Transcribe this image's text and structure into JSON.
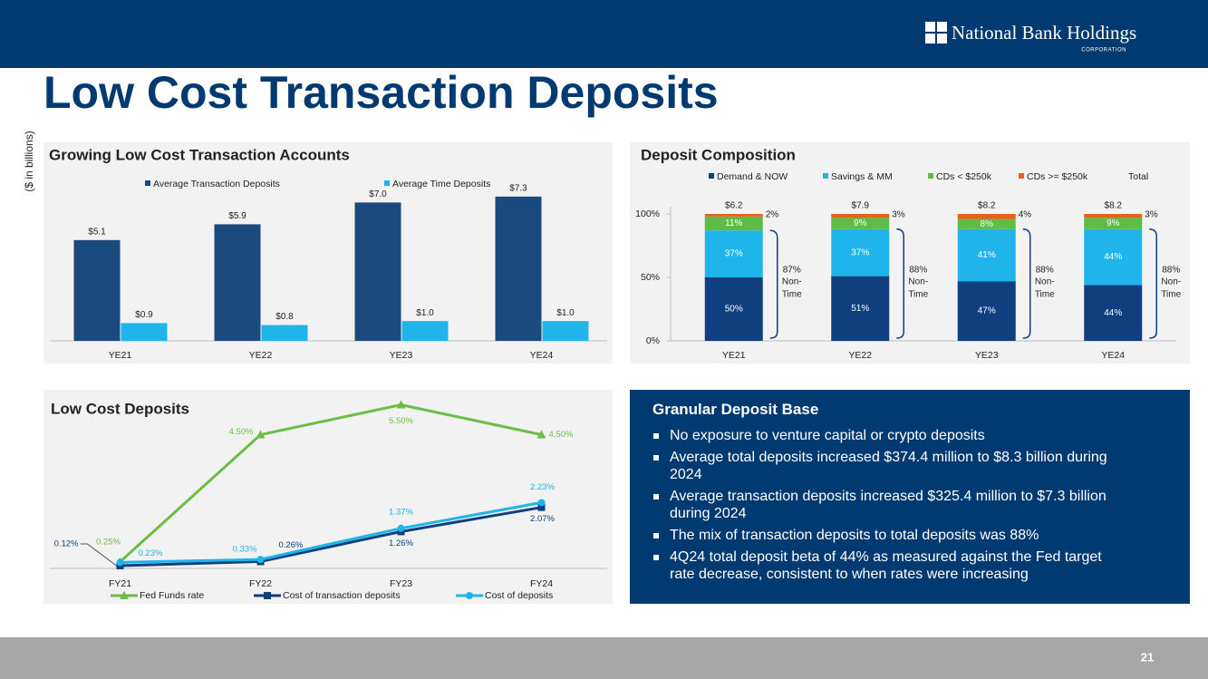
{
  "header": {
    "logo": "National Bank Holdings",
    "logo_sub": "CORPORATION",
    "title": "Low Cost Transaction Deposits"
  },
  "chart_data": [
    {
      "type": "bar",
      "title": "Growing Low Cost Transaction Accounts",
      "y_label": "($ in billions)",
      "categories": [
        "YE21",
        "YE22",
        "YE23",
        "YE24"
      ],
      "series": [
        {
          "name": "Average Transaction Deposits",
          "color": "#1b4a7f",
          "values": [
            5.1,
            5.9,
            7.0,
            7.3
          ],
          "value_labels": [
            "$5.1",
            "$5.9",
            "$7.0",
            "$7.3"
          ]
        },
        {
          "name": "Average Time Deposits",
          "color": "#1fb5ea",
          "values": [
            0.9,
            0.8,
            1.0,
            1.0
          ],
          "value_labels": [
            "$0.9",
            "$0.8",
            "$1.0",
            "$1.0"
          ]
        }
      ]
    },
    {
      "type": "stacked_bar",
      "title": "Deposit Composition",
      "categories": [
        "YE21",
        "YE22",
        "YE23",
        "YE24"
      ],
      "series": [
        {
          "name": "Demand & NOW",
          "color": "#0f3f7f",
          "values": [
            50,
            51,
            47,
            44
          ],
          "value_labels": [
            "50%",
            "51%",
            "47%",
            "44%"
          ]
        },
        {
          "name": "Savings & MM",
          "color": "#1fb5ea",
          "values": [
            37,
            37,
            41,
            44
          ],
          "value_labels": [
            "37%",
            "37%",
            "41%",
            "44%"
          ]
        },
        {
          "name": "CDs < $250k",
          "color": "#5dbb46",
          "values": [
            11,
            9,
            8,
            9
          ],
          "value_labels": [
            "11%",
            "9%",
            "8%",
            "9%"
          ]
        },
        {
          "name": "CDs >= $250k",
          "color": "#e8601c",
          "values": [
            2,
            3,
            4,
            3
          ],
          "value_labels": [
            "2%",
            "3%",
            "4%",
            "3%"
          ]
        }
      ],
      "totals": {
        "name": "Total",
        "values": [
          6.2,
          7.9,
          8.2,
          8.2
        ],
        "value_labels": [
          "$6.2",
          "$7.9",
          "$8.2",
          "$8.2"
        ]
      },
      "annotations": [
        {
          "value": 87,
          "label": "87%"
        },
        {
          "value": 88,
          "label": "88%"
        },
        {
          "value": 88,
          "label": "88%"
        },
        {
          "value": 88,
          "label": "88%"
        }
      ],
      "annotation_note": [
        "Non-",
        "Time"
      ],
      "ylim": [
        0,
        100
      ],
      "yticks": [
        {
          "value": 0,
          "label": "0%"
        },
        {
          "value": 50,
          "label": "50%"
        },
        {
          "value": 100,
          "label": "100%"
        }
      ]
    },
    {
      "type": "line",
      "title": "Low Cost Deposits",
      "categories": [
        "FY21",
        "FY22",
        "FY23",
        "FY24"
      ],
      "series": [
        {
          "name": "Fed Funds rate",
          "color": "#6cbd45",
          "marker": "triangle",
          "values": [
            0.25,
            4.5,
            5.5,
            4.5
          ],
          "value_labels": [
            "0.25%",
            "4.50%",
            "5.50%",
            "4.50%"
          ]
        },
        {
          "name": "Cost of transaction deposits",
          "color": "#0f3f7f",
          "marker": "square",
          "values": [
            0.12,
            0.26,
            1.26,
            2.07
          ],
          "value_labels": [
            "0.12%",
            "0.26%",
            "1.26%",
            "2.07%"
          ]
        },
        {
          "name": "Cost of deposits",
          "color": "#1fb5ea",
          "marker": "circle",
          "values": [
            0.23,
            0.33,
            1.37,
            2.23
          ],
          "value_labels": [
            "0.23%",
            "0.33%",
            "1.37%",
            "2.23%"
          ]
        }
      ]
    }
  ],
  "panel": {
    "title": "Granular Deposit Base",
    "bullets": [
      "No exposure to venture capital or crypto deposits",
      "Average total deposits increased $374.4 million to $8.3 billion during 2024",
      "Average transaction deposits increased $325.4 million to $7.3 billion during 2024",
      "The mix of transaction deposits to total deposits was 88%",
      "4Q24 total deposit beta of 44% as measured against the Fed target rate decrease, consistent to when rates were increasing"
    ]
  },
  "footer": {
    "page": 21
  }
}
